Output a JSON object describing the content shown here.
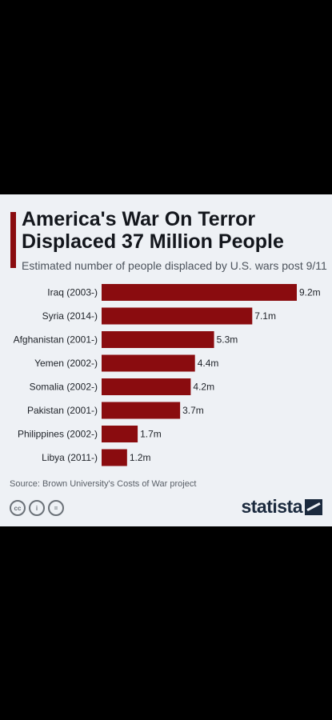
{
  "header": {
    "title": "America's War On Terror Displaced 37 Million People",
    "subtitle": "Estimated number of people displaced by U.S. wars post 9/11"
  },
  "chart_data": {
    "type": "bar",
    "orientation": "horizontal",
    "categories": [
      "Iraq (2003-)",
      "Syria (2014-)",
      "Afghanistan (2001-)",
      "Yemen (2002-)",
      "Somalia (2002-)",
      "Pakistan (2001-)",
      "Philippines (2002-)",
      "Libya (2011-)"
    ],
    "values": [
      9.2,
      7.1,
      5.3,
      4.4,
      4.2,
      3.7,
      1.7,
      1.2
    ],
    "data_labels": [
      "9.2m",
      "7.1m",
      "5.3m",
      "4.4m",
      "4.2m",
      "3.7m",
      "1.7m",
      "1.2m"
    ],
    "xlim": [
      0,
      9.2
    ],
    "grid": false,
    "bar_color": "#8a0c0f"
  },
  "footer": {
    "source": "Source: Brown University's Costs of War project",
    "brand": "statista",
    "license_icons": [
      "cc-icon",
      "by-icon",
      "nd-icon"
    ],
    "license_glyphs": [
      "cc",
      "i",
      "="
    ]
  }
}
